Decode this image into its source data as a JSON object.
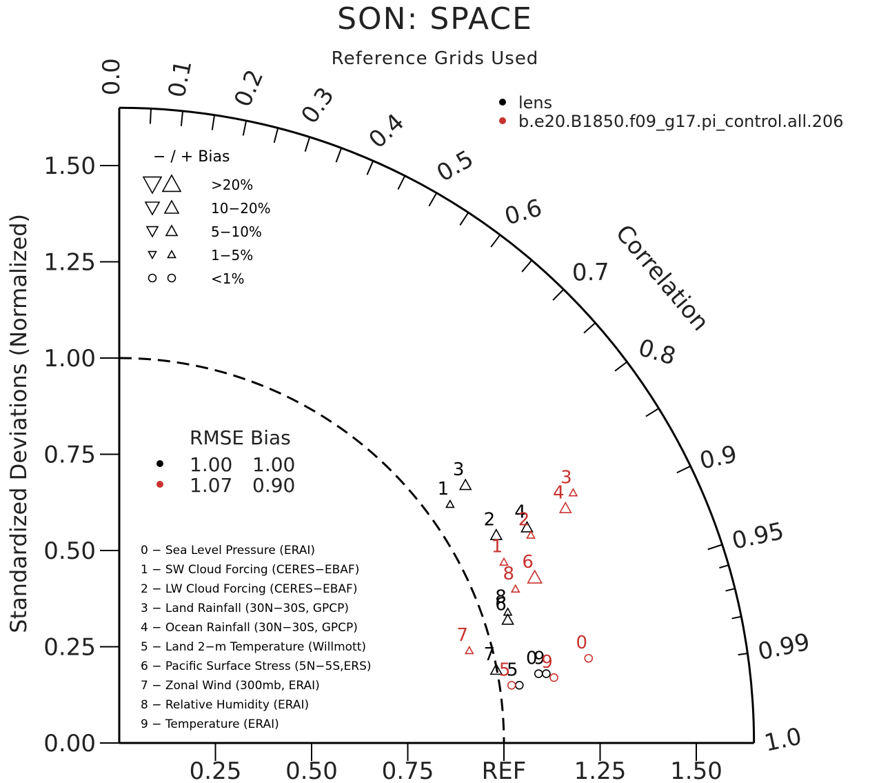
{
  "title": "SON: SPACE",
  "subtitle": "Reference Grids Used",
  "colors": {
    "lens": "#000000",
    "model": "#c8322f"
  },
  "chart_data": {
    "type": "scatter",
    "variant": "taylor-diagram",
    "ylabel": "Standardized Deviations (Normalized)",
    "arc_label": "Correlation",
    "std_ticks": [
      "0.00",
      "0.25",
      "0.50",
      "0.75",
      "1.00",
      "1.25",
      "1.50"
    ],
    "x_ticks": [
      "0.25",
      "0.50",
      "0.75",
      "REF",
      "1.25",
      "1.50"
    ],
    "corr_labels": [
      "0.0",
      "0.1",
      "0.2",
      "0.3",
      "0.4",
      "0.5",
      "0.6",
      "0.7",
      "0.8",
      "0.9",
      "0.95",
      "0.99",
      "1.0"
    ],
    "max_std": 1.65,
    "ref_std": 1.0,
    "series": [
      {
        "name": "lens",
        "color": "#000000",
        "rmse": "1.00",
        "bias": "1.00",
        "points": [
          {
            "id": "0",
            "x": 1.09,
            "y": 0.18,
            "bias": "<1%"
          },
          {
            "id": "1",
            "x": 0.86,
            "y": 0.62,
            "bias": "1-5%"
          },
          {
            "id": "2",
            "x": 0.98,
            "y": 0.54,
            "bias": "5-10%"
          },
          {
            "id": "3",
            "x": 0.9,
            "y": 0.67,
            "bias": "5-10%"
          },
          {
            "id": "4",
            "x": 1.06,
            "y": 0.56,
            "bias": "5-10%"
          },
          {
            "id": "5",
            "x": 1.04,
            "y": 0.15,
            "bias": "<1%"
          },
          {
            "id": "6",
            "x": 1.01,
            "y": 0.32,
            "bias": "5-10%"
          },
          {
            "id": "7",
            "x": 0.98,
            "y": 0.19,
            "bias": "5-10%"
          },
          {
            "id": "8",
            "x": 1.01,
            "y": 0.34,
            "bias": "1-5%"
          },
          {
            "id": "9",
            "x": 1.11,
            "y": 0.18,
            "bias": "<1%"
          }
        ]
      },
      {
        "name": "b.e20.B1850.f09_g17.pi_control.all.206",
        "color": "#c8322f",
        "rmse": "1.07",
        "bias": "0.90",
        "points": [
          {
            "id": "0",
            "x": 1.22,
            "y": 0.22,
            "bias": "<1%"
          },
          {
            "id": "1",
            "x": 1.0,
            "y": 0.47,
            "bias": "1-5%"
          },
          {
            "id": "2",
            "x": 1.07,
            "y": 0.54,
            "bias": "1-5%"
          },
          {
            "id": "3",
            "x": 1.18,
            "y": 0.65,
            "bias": "1-5%"
          },
          {
            "id": "4",
            "x": 1.16,
            "y": 0.61,
            "bias": "5-10%"
          },
          {
            "id": "5",
            "x": 1.02,
            "y": 0.15,
            "bias": "<1%"
          },
          {
            "id": "6",
            "x": 1.08,
            "y": 0.43,
            "bias": "10-20%"
          },
          {
            "id": "7",
            "x": 0.91,
            "y": 0.24,
            "bias": "1-5%"
          },
          {
            "id": "8",
            "x": 1.03,
            "y": 0.4,
            "bias": "1-5%"
          },
          {
            "id": "9",
            "x": 1.13,
            "y": 0.17,
            "bias": "<1%"
          }
        ]
      }
    ],
    "bias_legend": {
      "header": "−  /  +      Bias",
      "rows": [
        ">20%",
        "10−20%",
        "5−10%",
        "1−5%",
        "<1%"
      ]
    },
    "rmse_legend": {
      "header": "RMSE  Bias"
    },
    "variables": [
      "0 − Sea Level Pressure (ERAI)",
      "1 − SW Cloud Forcing (CERES−EBAF)",
      "2 − LW Cloud Forcing (CERES−EBAF)",
      "3 − Land Rainfall (30N−30S, GPCP)",
      "4 − Ocean Rainfall (30N−30S, GPCP)",
      "5 − Land 2−m Temperature (Willmott)",
      "6 − Pacific Surface Stress (5N−5S,ERS)",
      "7 − Zonal Wind (300mb, ERAI)",
      "8 − Relative Humidity (ERAI)",
      "9 − Temperature (ERAI)"
    ]
  }
}
